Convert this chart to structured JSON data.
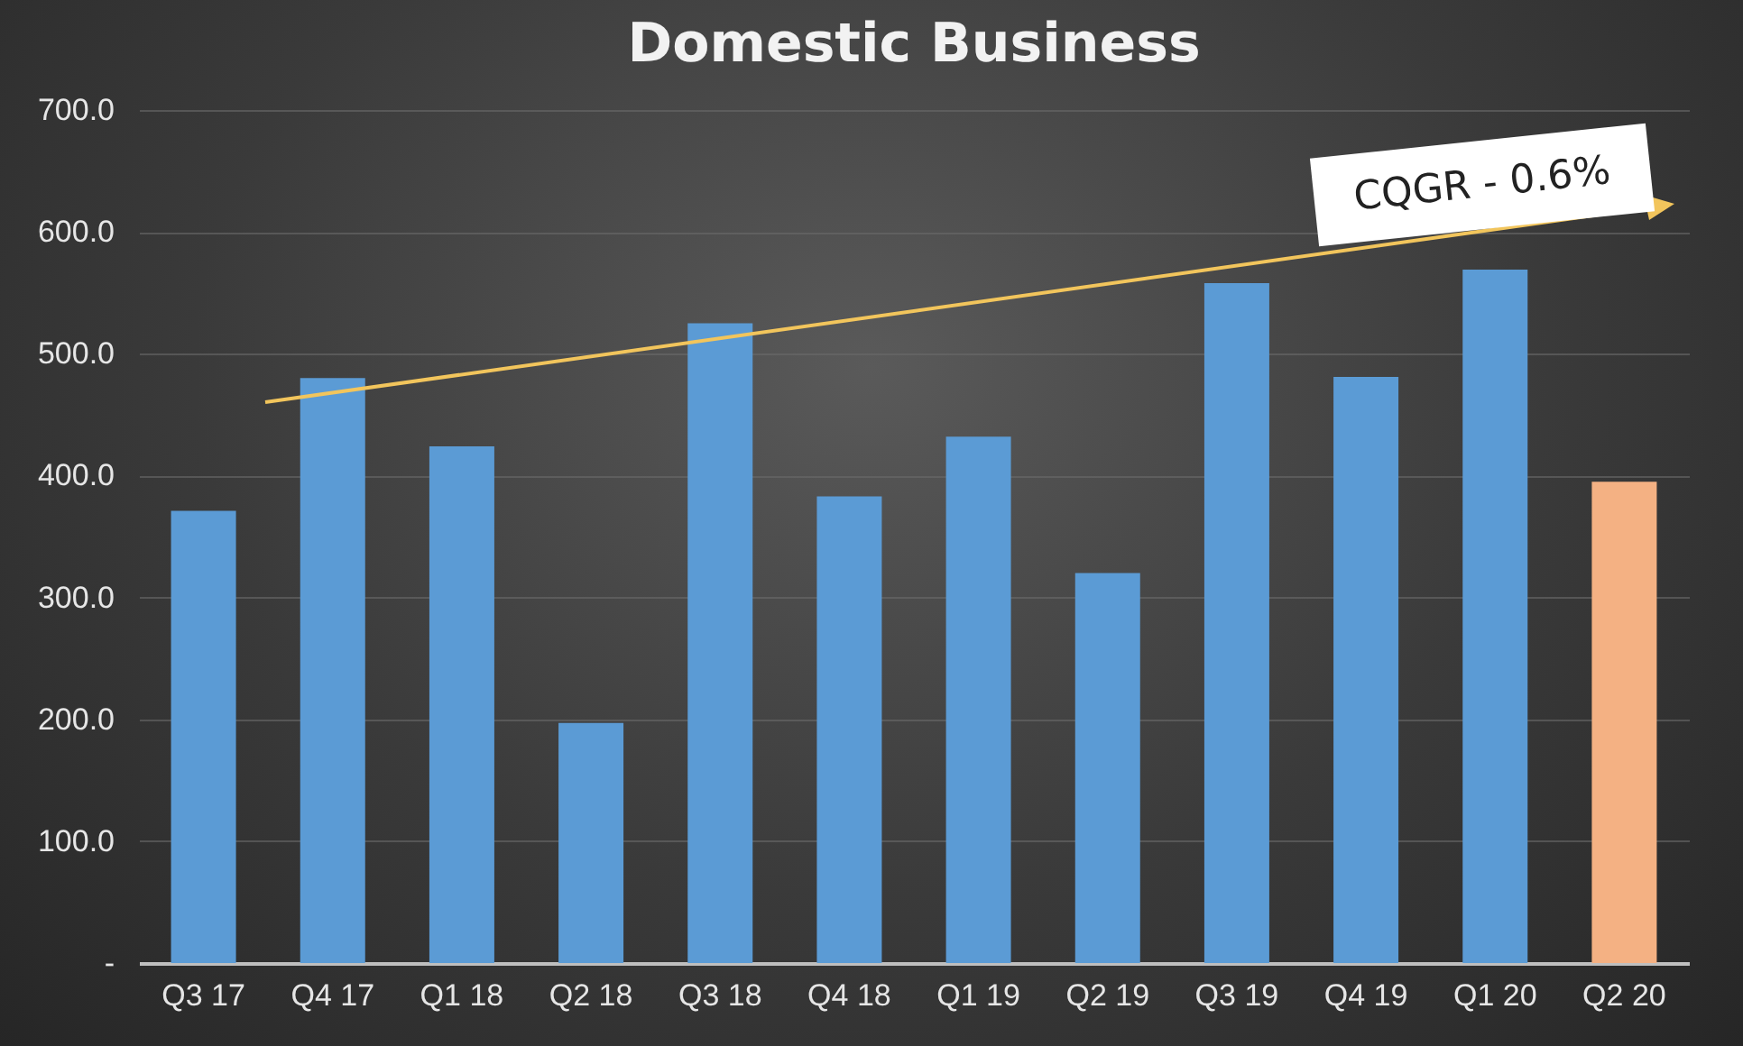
{
  "chart_data": {
    "type": "bar",
    "title": "Domestic Business",
    "categories": [
      "Q3 17",
      "Q4 17",
      "Q1 18",
      "Q2 18",
      "Q3 18",
      "Q4 18",
      "Q1 19",
      "Q2 19",
      "Q3 19",
      "Q4 19",
      "Q1 20",
      "Q2 20"
    ],
    "values": [
      371,
      480,
      424,
      197,
      525,
      383,
      432,
      320,
      558,
      481,
      569,
      395
    ],
    "colors": [
      "#5b9bd5",
      "#5b9bd5",
      "#5b9bd5",
      "#5b9bd5",
      "#5b9bd5",
      "#5b9bd5",
      "#5b9bd5",
      "#5b9bd5",
      "#5b9bd5",
      "#5b9bd5",
      "#5b9bd5",
      "#f4b183"
    ],
    "ylim": [
      0,
      700
    ],
    "yticks": [
      {
        "value": 0,
        "label": "-"
      },
      {
        "value": 100,
        "label": "100.0"
      },
      {
        "value": 200,
        "label": "200.0"
      },
      {
        "value": 300,
        "label": "300.0"
      },
      {
        "value": 400,
        "label": "400.0"
      },
      {
        "value": 500,
        "label": "500.0"
      },
      {
        "value": 600,
        "label": "600.0"
      },
      {
        "value": 700,
        "label": "700.0"
      }
    ],
    "grid": "y",
    "annotations": [
      "CQGR - 0.6%"
    ]
  }
}
